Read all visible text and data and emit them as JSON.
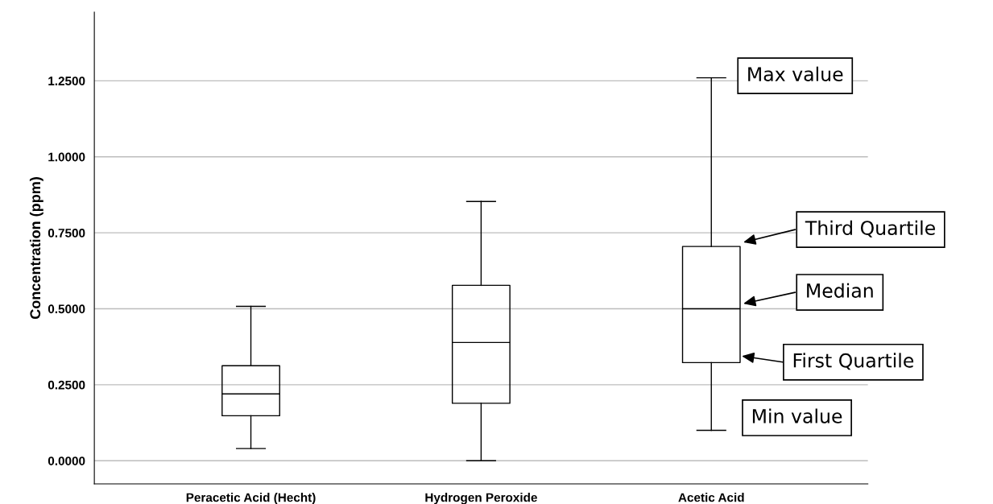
{
  "chart_data": {
    "type": "box",
    "ylabel": "Concentration (ppm)",
    "categories": [
      "Peracetic Acid (Hecht)",
      "Hydrogen Peroxide",
      "Acetic Acid"
    ],
    "boxes": [
      {
        "low": 0.04,
        "q1": 0.148,
        "median": 0.22,
        "q3": 0.3125,
        "high": 0.508
      },
      {
        "low": 0.0,
        "q1": 0.189,
        "median": 0.389,
        "q3": 0.577,
        "high": 0.853
      },
      {
        "low": 0.1,
        "q1": 0.323,
        "median": 0.5,
        "q3": 0.705,
        "high": 1.26
      }
    ],
    "ylim": [
      -0.076,
      1.476
    ],
    "yticks": [
      {
        "value": 0,
        "label": "0.0000"
      },
      {
        "value": 0.25,
        "label": "0.2500"
      },
      {
        "value": 0.5,
        "label": "0.5000"
      },
      {
        "value": 0.75,
        "label": "0.7500"
      },
      {
        "value": 1.0,
        "label": "1.0000"
      },
      {
        "value": 1.25,
        "label": "1.2500"
      }
    ],
    "grid": "y",
    "annotations": [
      "Max value",
      "Third Quartile",
      "Median",
      "First Quartile",
      "Min value"
    ]
  }
}
